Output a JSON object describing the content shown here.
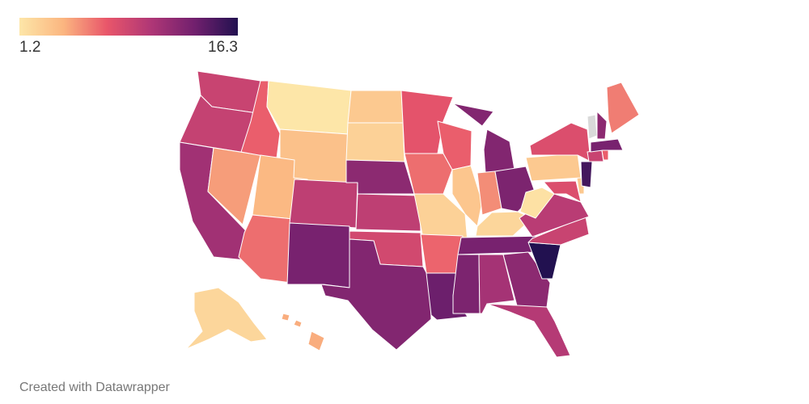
{
  "legend": {
    "min_label": "1.2",
    "max_label": "16.3",
    "min_value": 1.2,
    "max_value": 16.3,
    "gradient": [
      "#fde6a8",
      "#fbb680",
      "#e9566a",
      "#b03776",
      "#72206e",
      "#221150"
    ]
  },
  "map_data": {
    "no_data_color": "#d9d9d9",
    "states": [
      {
        "id": "WA",
        "value": 9.0
      },
      {
        "id": "OR",
        "value": 9.2
      },
      {
        "id": "CA",
        "value": 11.0
      },
      {
        "id": "NV",
        "value": 5.0
      },
      {
        "id": "ID",
        "value": 7.0
      },
      {
        "id": "MT",
        "value": 1.2
      },
      {
        "id": "WY",
        "value": 3.5
      },
      {
        "id": "UT",
        "value": 4.0
      },
      {
        "id": "AZ",
        "value": 6.5
      },
      {
        "id": "CO",
        "value": 9.5
      },
      {
        "id": "NM",
        "value": 13.0
      },
      {
        "id": "ND",
        "value": 3.0
      },
      {
        "id": "SD",
        "value": 2.5
      },
      {
        "id": "NE",
        "value": 12.0
      },
      {
        "id": "KS",
        "value": 9.5
      },
      {
        "id": "OK",
        "value": 8.5
      },
      {
        "id": "TX",
        "value": 12.5
      },
      {
        "id": "MN",
        "value": 7.5
      },
      {
        "id": "IA",
        "value": 6.5
      },
      {
        "id": "MO",
        "value": 2.5
      },
      {
        "id": "AR",
        "value": 6.8
      },
      {
        "id": "LA",
        "value": 13.5
      },
      {
        "id": "WI",
        "value": 7.0
      },
      {
        "id": "IL",
        "value": 3.2
      },
      {
        "id": "MI",
        "value": 12.5
      },
      {
        "id": "IN",
        "value": 5.5
      },
      {
        "id": "OH",
        "value": 12.8
      },
      {
        "id": "KY",
        "value": 2.2
      },
      {
        "id": "TN",
        "value": 13.0
      },
      {
        "id": "MS",
        "value": 12.8
      },
      {
        "id": "AL",
        "value": 10.8
      },
      {
        "id": "GA",
        "value": 12.0
      },
      {
        "id": "FL",
        "value": 10.0
      },
      {
        "id": "SC",
        "value": 16.3
      },
      {
        "id": "NC",
        "value": 9.0
      },
      {
        "id": "VA",
        "value": 9.8
      },
      {
        "id": "WV",
        "value": 1.5
      },
      {
        "id": "MD",
        "value": 8.0
      },
      {
        "id": "DE",
        "value": 3.0
      },
      {
        "id": "NJ",
        "value": 15.0
      },
      {
        "id": "PA",
        "value": 3.0
      },
      {
        "id": "NY",
        "value": 8.0
      },
      {
        "id": "CT",
        "value": 9.0
      },
      {
        "id": "RI",
        "value": 7.0
      },
      {
        "id": "MA",
        "value": 13.0
      },
      {
        "id": "VT",
        "value": null
      },
      {
        "id": "NH",
        "value": 12.0
      },
      {
        "id": "ME",
        "value": 6.0
      },
      {
        "id": "AK",
        "value": 2.2
      },
      {
        "id": "HI",
        "value": 4.5
      }
    ]
  },
  "footer": {
    "credit": "Created with Datawrapper"
  }
}
